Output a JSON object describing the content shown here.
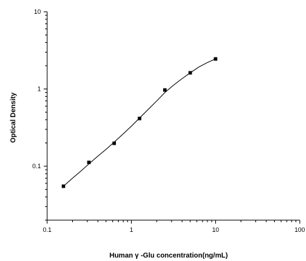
{
  "chart_data": {
    "type": "scatter",
    "title": "",
    "xlabel": "Human γ -Glu concentration(ng/mL)",
    "ylabel": "Optical Density",
    "x_scale": "log",
    "y_scale": "log",
    "xlim": [
      0.1,
      100
    ],
    "ylim": [
      0.02,
      10
    ],
    "x_major_ticks": [
      0.1,
      1,
      10,
      100
    ],
    "x_tick_labels": [
      "0.1",
      "1",
      "10",
      "100"
    ],
    "y_major_ticks": [
      0.1,
      1,
      10
    ],
    "y_tick_labels": [
      "0.1",
      "1",
      "10"
    ],
    "grid": false,
    "legend": "none",
    "series": [
      {
        "marker": "square",
        "color": "#000000",
        "x": [
          0.156,
          0.313,
          0.625,
          1.25,
          2.5,
          5,
          10
        ],
        "y": [
          0.055,
          0.112,
          0.198,
          0.415,
          0.97,
          1.62,
          2.45
        ]
      }
    ],
    "fit_curve": {
      "style": "solid",
      "color": "#000000",
      "x": [
        0.156,
        0.2,
        0.25,
        0.313,
        0.4,
        0.5,
        0.625,
        0.8,
        1,
        1.25,
        1.6,
        2,
        2.5,
        3.2,
        4,
        5,
        6.3,
        8,
        10
      ],
      "y": [
        0.055,
        0.07,
        0.086,
        0.107,
        0.135,
        0.165,
        0.205,
        0.262,
        0.33,
        0.42,
        0.55,
        0.7,
        0.9,
        1.13,
        1.36,
        1.62,
        1.92,
        2.2,
        2.45
      ]
    }
  }
}
